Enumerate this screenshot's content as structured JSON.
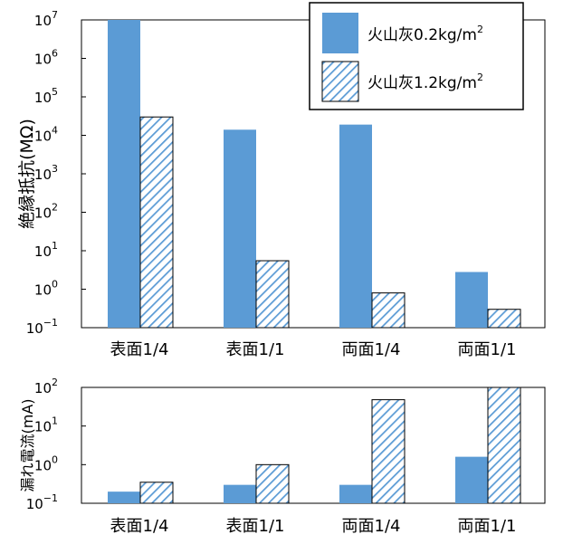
{
  "chart_data": [
    {
      "type": "bar",
      "scale": "log",
      "ylabel": "絶縁抵抗(MΩ)",
      "ylim": [
        0.1,
        10000000
      ],
      "yticks": [
        {
          "value": 0.1,
          "base": "10",
          "exp": "−1"
        },
        {
          "value": 1,
          "base": "10",
          "exp": "0"
        },
        {
          "value": 10,
          "base": "10",
          "exp": "1"
        },
        {
          "value": 100,
          "base": "10",
          "exp": "2"
        },
        {
          "value": 1000,
          "base": "10",
          "exp": "3"
        },
        {
          "value": 10000,
          "base": "10",
          "exp": "4"
        },
        {
          "value": 100000,
          "base": "10",
          "exp": "5"
        },
        {
          "value": 1000000,
          "base": "10",
          "exp": "6"
        },
        {
          "value": 10000000,
          "base": "10",
          "exp": "7"
        }
      ],
      "categories": [
        "表面1/4",
        "表面1/1",
        "両面1/4",
        "両面1/1"
      ],
      "series": [
        {
          "name": "火山灰0.2kg/m",
          "name_sup": "2",
          "fill": "solid",
          "color": "#5b9bd5",
          "values": [
            10000000,
            14000,
            19000,
            2.8
          ]
        },
        {
          "name": "火山灰1.2kg/m",
          "name_sup": "2",
          "fill": "hatched",
          "color": "#5b9bd5",
          "values": [
            30000,
            5.5,
            0.8,
            0.3
          ]
        }
      ],
      "legend_position": "top-right",
      "grid": false
    },
    {
      "type": "bar",
      "scale": "log",
      "ylabel": "漏れ電流(mA)",
      "ylim": [
        0.1,
        100
      ],
      "yticks": [
        {
          "value": 0.1,
          "base": "10",
          "exp": "−1"
        },
        {
          "value": 1,
          "base": "10",
          "exp": "0"
        },
        {
          "value": 10,
          "base": "10",
          "exp": "1"
        },
        {
          "value": 100,
          "base": "10",
          "exp": "2"
        }
      ],
      "categories": [
        "表面1/4",
        "表面1/1",
        "両面1/4",
        "両面1/1"
      ],
      "series": [
        {
          "name": "火山灰0.2kg/m",
          "fill": "solid",
          "color": "#5b9bd5",
          "values": [
            0.2,
            0.3,
            0.3,
            1.6
          ]
        },
        {
          "name": "火山灰1.2kg/m",
          "fill": "hatched",
          "color": "#5b9bd5",
          "values": [
            0.35,
            1.0,
            48,
            100
          ]
        }
      ],
      "grid": false
    }
  ]
}
